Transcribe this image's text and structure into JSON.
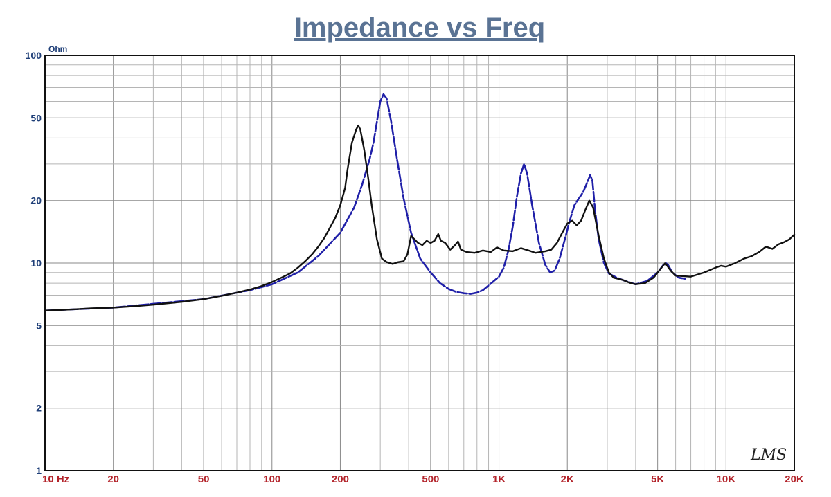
{
  "chart_data": {
    "type": "line",
    "title": "Impedance vs Freq",
    "ylabel": "Ohm",
    "x_scale": "log",
    "y_scale": "log",
    "xlim": [
      10,
      20000
    ],
    "ylim": [
      1,
      100
    ],
    "grid": true,
    "x_tick_labels": [
      {
        "v": 10,
        "label": "10  Hz"
      },
      {
        "v": 20,
        "label": "20"
      },
      {
        "v": 50,
        "label": "50"
      },
      {
        "v": 100,
        "label": "100"
      },
      {
        "v": 200,
        "label": "200"
      },
      {
        "v": 500,
        "label": "500"
      },
      {
        "v": 1000,
        "label": "1K"
      },
      {
        "v": 2000,
        "label": "2K"
      },
      {
        "v": 5000,
        "label": "5K"
      },
      {
        "v": 10000,
        "label": "10K"
      },
      {
        "v": 20000,
        "label": "20K"
      }
    ],
    "y_tick_labels": [
      {
        "v": 1,
        "label": "1"
      },
      {
        "v": 2,
        "label": "2"
      },
      {
        "v": 5,
        "label": "5"
      },
      {
        "v": 10,
        "label": "10"
      },
      {
        "v": 20,
        "label": "20"
      },
      {
        "v": 50,
        "label": "50"
      },
      {
        "v": 100,
        "label": "100"
      }
    ],
    "series": [
      {
        "color": "#111111",
        "style": "solid",
        "points": [
          [
            10,
            5.9
          ],
          [
            12,
            5.95
          ],
          [
            14,
            6.0
          ],
          [
            16,
            6.05
          ],
          [
            20,
            6.1
          ],
          [
            25,
            6.2
          ],
          [
            30,
            6.3
          ],
          [
            40,
            6.5
          ],
          [
            50,
            6.7
          ],
          [
            60,
            6.95
          ],
          [
            70,
            7.2
          ],
          [
            80,
            7.45
          ],
          [
            90,
            7.75
          ],
          [
            100,
            8.1
          ],
          [
            110,
            8.5
          ],
          [
            120,
            8.9
          ],
          [
            130,
            9.5
          ],
          [
            140,
            10.2
          ],
          [
            150,
            11.0
          ],
          [
            160,
            12.0
          ],
          [
            170,
            13.2
          ],
          [
            180,
            14.8
          ],
          [
            190,
            16.5
          ],
          [
            200,
            19.0
          ],
          [
            210,
            23.0
          ],
          [
            215,
            28.0
          ],
          [
            225,
            38.0
          ],
          [
            235,
            44.0
          ],
          [
            240,
            46.0
          ],
          [
            245,
            44.0
          ],
          [
            255,
            35.0
          ],
          [
            265,
            26.0
          ],
          [
            275,
            19.0
          ],
          [
            290,
            13.0
          ],
          [
            305,
            10.5
          ],
          [
            320,
            10.1
          ],
          [
            340,
            9.9
          ],
          [
            360,
            10.1
          ],
          [
            380,
            10.2
          ],
          [
            395,
            11.0
          ],
          [
            410,
            13.5
          ],
          [
            425,
            13.0
          ],
          [
            440,
            12.5
          ],
          [
            460,
            12.2
          ],
          [
            480,
            12.8
          ],
          [
            500,
            12.5
          ],
          [
            520,
            12.8
          ],
          [
            540,
            13.8
          ],
          [
            555,
            12.8
          ],
          [
            580,
            12.5
          ],
          [
            610,
            11.6
          ],
          [
            640,
            12.2
          ],
          [
            660,
            12.7
          ],
          [
            680,
            11.6
          ],
          [
            720,
            11.3
          ],
          [
            780,
            11.2
          ],
          [
            850,
            11.5
          ],
          [
            920,
            11.3
          ],
          [
            980,
            11.9
          ],
          [
            1050,
            11.5
          ],
          [
            1150,
            11.4
          ],
          [
            1250,
            11.8
          ],
          [
            1350,
            11.5
          ],
          [
            1450,
            11.2
          ],
          [
            1600,
            11.4
          ],
          [
            1700,
            11.6
          ],
          [
            1800,
            12.5
          ],
          [
            1900,
            14.0
          ],
          [
            2000,
            15.5
          ],
          [
            2100,
            16.0
          ],
          [
            2200,
            15.2
          ],
          [
            2300,
            16.0
          ],
          [
            2400,
            18.0
          ],
          [
            2500,
            20.0
          ],
          [
            2600,
            18.5
          ],
          [
            2750,
            13.5
          ],
          [
            2900,
            10.5
          ],
          [
            3050,
            9.0
          ],
          [
            3200,
            8.5
          ],
          [
            3500,
            8.3
          ],
          [
            3800,
            8.0
          ],
          [
            4000,
            7.9
          ],
          [
            4400,
            8.0
          ],
          [
            4800,
            8.5
          ],
          [
            5200,
            9.5
          ],
          [
            5400,
            10.0
          ],
          [
            5700,
            9.2
          ],
          [
            6000,
            8.7
          ],
          [
            7000,
            8.6
          ],
          [
            8000,
            9.0
          ],
          [
            9000,
            9.5
          ],
          [
            9500,
            9.7
          ],
          [
            10000,
            9.6
          ],
          [
            11000,
            10.0
          ],
          [
            12000,
            10.5
          ],
          [
            13000,
            10.8
          ],
          [
            14000,
            11.3
          ],
          [
            15000,
            12.0
          ],
          [
            16000,
            11.7
          ],
          [
            17000,
            12.3
          ],
          [
            18000,
            12.6
          ],
          [
            19000,
            13.0
          ],
          [
            20000,
            13.7
          ]
        ]
      },
      {
        "color": "#1f1fa8",
        "style": "dashed",
        "points": [
          [
            10,
            5.9
          ],
          [
            20,
            6.1
          ],
          [
            50,
            6.7
          ],
          [
            80,
            7.4
          ],
          [
            100,
            7.9
          ],
          [
            130,
            9.0
          ],
          [
            160,
            10.8
          ],
          [
            200,
            14.0
          ],
          [
            230,
            18.5
          ],
          [
            250,
            24.0
          ],
          [
            270,
            32.0
          ],
          [
            280,
            38.0
          ],
          [
            290,
            48.0
          ],
          [
            300,
            60.0
          ],
          [
            310,
            65.0
          ],
          [
            320,
            62.0
          ],
          [
            335,
            48.0
          ],
          [
            355,
            32.0
          ],
          [
            380,
            20.5
          ],
          [
            410,
            14.0
          ],
          [
            450,
            10.5
          ],
          [
            500,
            9.0
          ],
          [
            550,
            8.0
          ],
          [
            600,
            7.5
          ],
          [
            650,
            7.25
          ],
          [
            700,
            7.15
          ],
          [
            750,
            7.1
          ],
          [
            800,
            7.2
          ],
          [
            850,
            7.4
          ],
          [
            900,
            7.8
          ],
          [
            950,
            8.2
          ],
          [
            1000,
            8.6
          ],
          [
            1050,
            9.5
          ],
          [
            1100,
            11.5
          ],
          [
            1150,
            15.0
          ],
          [
            1200,
            21.0
          ],
          [
            1250,
            27.0
          ],
          [
            1290,
            30.0
          ],
          [
            1330,
            27.0
          ],
          [
            1400,
            19.0
          ],
          [
            1500,
            12.5
          ],
          [
            1600,
            9.8
          ],
          [
            1680,
            9.0
          ],
          [
            1760,
            9.2
          ],
          [
            1850,
            10.5
          ],
          [
            1950,
            13.0
          ],
          [
            2050,
            16.0
          ],
          [
            2150,
            19.0
          ],
          [
            2250,
            20.5
          ],
          [
            2350,
            22.0
          ],
          [
            2450,
            24.5
          ],
          [
            2520,
            26.5
          ],
          [
            2580,
            25.0
          ],
          [
            2650,
            18.0
          ],
          [
            2750,
            13.0
          ],
          [
            2900,
            10.0
          ],
          [
            3050,
            8.9
          ],
          [
            3300,
            8.5
          ],
          [
            3600,
            8.2
          ],
          [
            4000,
            7.9
          ],
          [
            4500,
            8.2
          ],
          [
            5000,
            9.0
          ],
          [
            5300,
            9.8
          ],
          [
            5500,
            10.0
          ],
          [
            5800,
            9.0
          ],
          [
            6200,
            8.5
          ],
          [
            6600,
            8.4
          ]
        ]
      }
    ]
  },
  "logo_text": "LMS"
}
